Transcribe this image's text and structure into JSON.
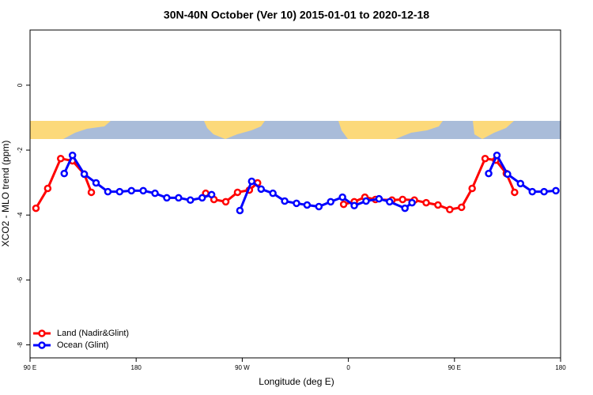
{
  "chart_data": {
    "type": "line",
    "title": "30N-40N October (Ver 10)   2015-01-01 to 2020-12-18",
    "x_label": "Longitude (deg E)",
    "y_label": "XCO2 - MLO trend (ppm)",
    "xlim": [
      90,
      540
    ],
    "ylim": [
      -8.4,
      1.7
    ],
    "xticks": [
      {
        "value": 90,
        "label": "90 E"
      },
      180,
      {
        "value": 270,
        "label": "90 W"
      },
      {
        "value": 360,
        "label": "0"
      },
      {
        "value": 450,
        "label": "90 E"
      },
      180
    ],
    "yticks": [
      0,
      -2,
      -4,
      -6,
      -8
    ],
    "legend": "bottom-left",
    "series": [
      {
        "name": "Land (Nadir&Glint)",
        "color": "#ff0000",
        "x": [
          95,
          105,
          116,
          126,
          136,
          142,
          null,
          239,
          246,
          256,
          266,
          276,
          283,
          null,
          356,
          365,
          374,
          383,
          397,
          406,
          416,
          426,
          436,
          446,
          456,
          465,
          476,
          485,
          494,
          501
        ],
        "values": [
          -3.79,
          -3.18,
          -2.26,
          -2.33,
          -2.74,
          -3.3,
          null,
          -3.33,
          -3.52,
          -3.59,
          -3.3,
          -3.23,
          -3.01,
          null,
          -3.67,
          -3.59,
          -3.45,
          -3.52,
          -3.54,
          -3.52,
          -3.54,
          -3.62,
          -3.69,
          -3.83,
          -3.76,
          -3.18,
          -2.26,
          -2.31,
          -2.72,
          -3.3
        ]
      },
      {
        "name": "Ocean (Glint)",
        "color": "#0000ff",
        "x": [
          119,
          126,
          136,
          146,
          156,
          166,
          176,
          186,
          196,
          206,
          216,
          226,
          236,
          244,
          null,
          268,
          278,
          286,
          296,
          306,
          316,
          325,
          335,
          345,
          355,
          365,
          375,
          386,
          395,
          408,
          414,
          null,
          479,
          486,
          495,
          506,
          516,
          526,
          536
        ],
        "values": [
          -2.72,
          -2.16,
          -2.74,
          -3.01,
          -3.28,
          -3.28,
          -3.25,
          -3.25,
          -3.33,
          -3.47,
          -3.47,
          -3.54,
          -3.47,
          -3.37,
          null,
          -3.86,
          -2.96,
          -3.2,
          -3.33,
          -3.57,
          -3.64,
          -3.69,
          -3.74,
          -3.59,
          -3.45,
          -3.71,
          -3.57,
          -3.5,
          -3.59,
          -3.79,
          -3.62,
          null,
          -2.72,
          -2.16,
          -2.74,
          -3.03,
          -3.28,
          -3.28,
          -3.25
        ]
      }
    ]
  }
}
